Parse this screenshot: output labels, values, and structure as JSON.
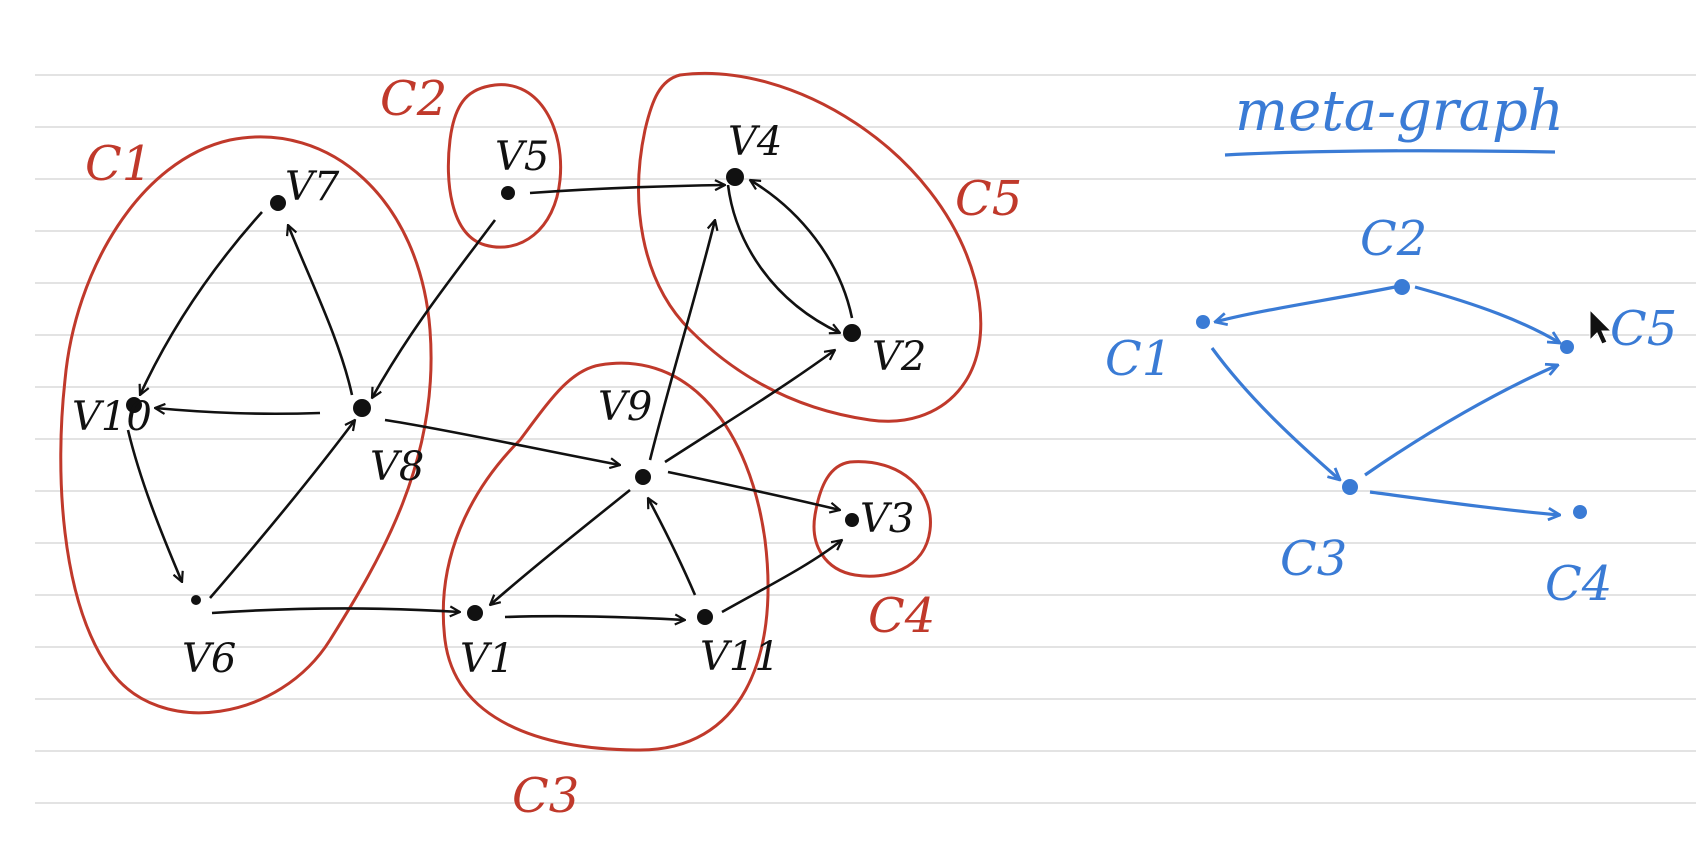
{
  "colors": {
    "graph": "#111111",
    "components": "#c0392b",
    "meta": "#3a7bd5",
    "rule": "#e3e3e3"
  },
  "vertices": {
    "v1": "V1",
    "v2": "V2",
    "v3": "V3",
    "v4": "V4",
    "v5": "V5",
    "v6": "V6",
    "v7": "V7",
    "v8": "V8",
    "v9": "V9",
    "v10": "V10",
    "v11": "V11"
  },
  "components": {
    "c1": "C1",
    "c2": "C2",
    "c3": "C3",
    "c4": "C4",
    "c5": "C5"
  },
  "edges": [
    [
      "v5",
      "v4"
    ],
    [
      "v5",
      "v8"
    ],
    [
      "v7",
      "v10"
    ],
    [
      "v8",
      "v7"
    ],
    [
      "v8",
      "v10"
    ],
    [
      "v10",
      "v6"
    ],
    [
      "v6",
      "v8"
    ],
    [
      "v6",
      "v1"
    ],
    [
      "v8",
      "v9"
    ],
    [
      "v9",
      "v4"
    ],
    [
      "v9",
      "v2"
    ],
    [
      "v9",
      "v3"
    ],
    [
      "v9",
      "v1"
    ],
    [
      "v1",
      "v11"
    ],
    [
      "v11",
      "v9"
    ],
    [
      "v11",
      "v3"
    ],
    [
      "v4",
      "v2"
    ],
    [
      "v2",
      "v4"
    ]
  ],
  "meta_graph": {
    "title": "meta-graph",
    "nodes": {
      "c1": "C1",
      "c2": "C2",
      "c3": "C3",
      "c4": "C4",
      "c5": "C5"
    },
    "edges": [
      [
        "c2",
        "c1"
      ],
      [
        "c2",
        "c5"
      ],
      [
        "c1",
        "c3"
      ],
      [
        "c3",
        "c5"
      ],
      [
        "c3",
        "c4"
      ]
    ]
  },
  "cursor_icon": "pointer-icon"
}
